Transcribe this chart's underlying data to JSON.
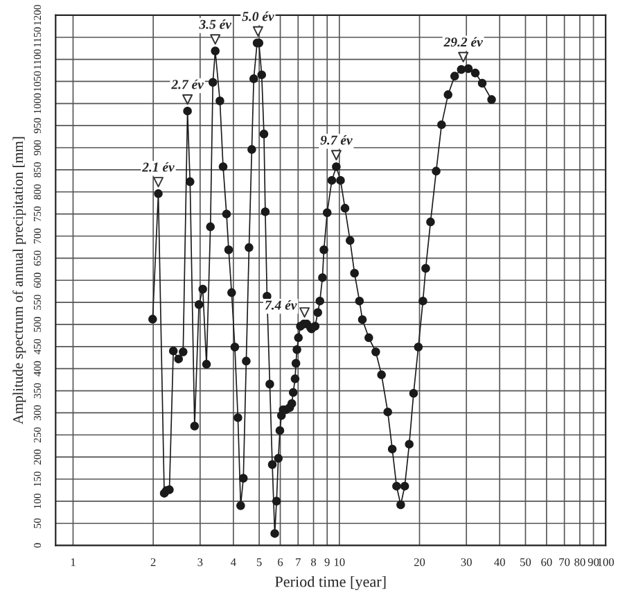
{
  "chart_data": {
    "type": "line",
    "xlabel": "Period time [year]",
    "ylabel": "Amplitude spectrum of annual precipitation [mm]",
    "log": "x",
    "grid": true,
    "marker": "circle",
    "line_style": "solid",
    "xlim": [
      0.86,
      100
    ],
    "xticks": [
      1,
      2,
      3,
      4,
      5,
      6,
      7,
      8,
      9,
      10,
      20,
      30,
      40,
      50,
      60,
      70,
      80,
      90,
      100
    ],
    "ylim": [
      0,
      1200
    ],
    "yticks": [
      0,
      50,
      100,
      150,
      200,
      250,
      300,
      350,
      400,
      450,
      500,
      550,
      600,
      650,
      700,
      750,
      800,
      850,
      900,
      950,
      1000,
      1050,
      1100,
      1150,
      1200
    ],
    "series": [
      {
        "color": "#1a1a1a",
        "x": [
          1.99,
          2.09,
          2.2,
          2.24,
          2.3,
          2.38,
          2.49,
          2.59,
          2.69,
          2.75,
          2.86,
          2.97,
          3.07,
          3.17,
          3.28,
          3.35,
          3.42,
          3.56,
          3.66,
          3.77,
          3.84,
          3.94,
          4.05,
          4.16,
          4.26,
          4.36,
          4.47,
          4.58,
          4.69,
          4.77,
          4.91,
          4.99,
          5.11,
          5.21,
          5.27,
          5.35,
          5.48,
          5.6,
          5.72,
          5.81,
          5.9,
          5.98,
          6.06,
          6.15,
          6.3,
          6.51,
          6.63,
          6.71,
          6.82,
          6.87,
          6.93,
          7.02,
          7.14,
          7.35,
          7.55,
          7.8,
          7.86,
          8.11,
          8.3,
          8.45,
          8.64,
          8.75,
          9.0,
          9.37,
          9.74,
          10.1,
          10.5,
          10.97,
          11.4,
          11.9,
          12.2,
          12.9,
          13.7,
          14.4,
          15.2,
          15.8,
          16.4,
          17.0,
          17.6,
          18.3,
          19.0,
          19.8,
          20.6,
          21.1,
          22.0,
          23.1,
          24.2,
          25.6,
          27.1,
          28.7,
          30.5,
          32.4,
          34.4,
          37.3
        ],
        "values": [
          512,
          796,
          118,
          124,
          126,
          440,
          422,
          438,
          983,
          823,
          270,
          545,
          580,
          410,
          721,
          1048,
          1119,
          1006,
          857,
          750,
          669,
          572,
          449,
          289,
          90,
          152,
          417,
          674,
          896,
          1056,
          1137,
          1137,
          1065,
          931,
          755,
          564,
          365,
          183,
          27,
          100,
          197,
          260,
          294,
          307,
          307,
          312,
          321,
          346,
          377,
          412,
          443,
          470,
          496,
          501,
          501,
          493,
          490,
          496,
          527,
          553,
          606,
          669,
          753,
          826,
          857,
          826,
          763,
          690,
          616,
          553,
          511,
          470,
          438,
          386,
          302,
          218,
          134,
          92,
          134,
          229,
          344,
          449,
          553,
          627,
          732,
          847,
          952,
          1020,
          1062,
          1077,
          1079,
          1069,
          1046,
          1009
        ]
      }
    ],
    "annotations": [
      {
        "text": "2.1 év",
        "x": 2.09,
        "y": 796
      },
      {
        "text": "2.7 év",
        "x": 2.69,
        "y": 983
      },
      {
        "text": "3.5 év",
        "x": 3.42,
        "y": 1119
      },
      {
        "text": "5.0 év",
        "x": 4.95,
        "y": 1137
      },
      {
        "text": "7.4 év",
        "x": 7.4,
        "y": 501
      },
      {
        "text": "9.7 év",
        "x": 9.74,
        "y": 857
      },
      {
        "text": "29.2 év",
        "x": 29.2,
        "y": 1079
      }
    ]
  }
}
